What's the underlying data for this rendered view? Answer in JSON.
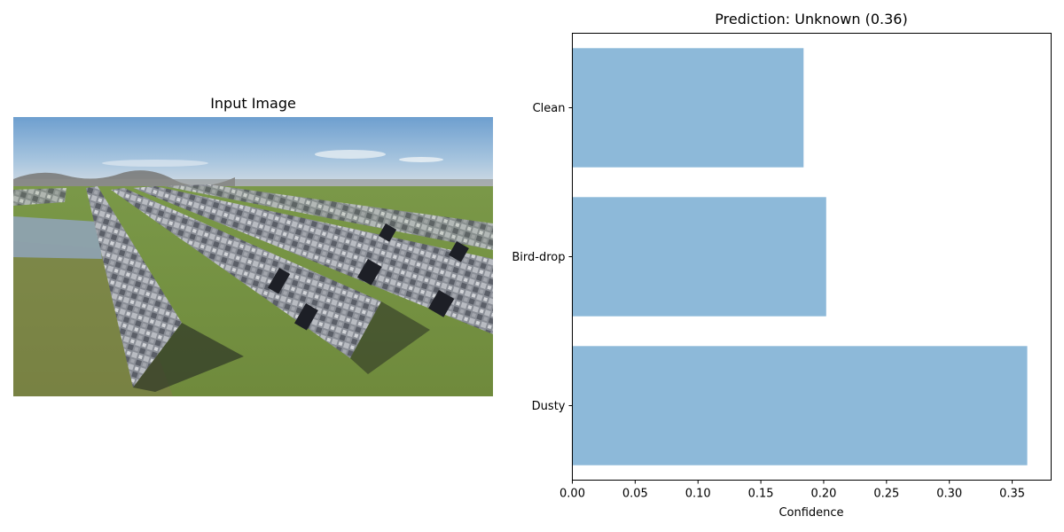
{
  "image_panel": {
    "title": "Input Image",
    "picture": "photo of rows of ground-mounted solar panels in a grassy field under a blue sky"
  },
  "chart_data": {
    "type": "bar",
    "orientation": "horizontal",
    "title": "Prediction: Unknown (0.36)",
    "xlabel": "Confidence",
    "ylabel": "",
    "categories": [
      "Clean",
      "Bird-drop",
      "Dusty"
    ],
    "values": [
      0.184,
      0.202,
      0.362
    ],
    "xlim": [
      0,
      0.381
    ],
    "xticks": [
      "0.00",
      "0.05",
      "0.10",
      "0.15",
      "0.20",
      "0.25",
      "0.30",
      "0.35"
    ],
    "grid": false,
    "bar_color": "#8db9d9"
  }
}
